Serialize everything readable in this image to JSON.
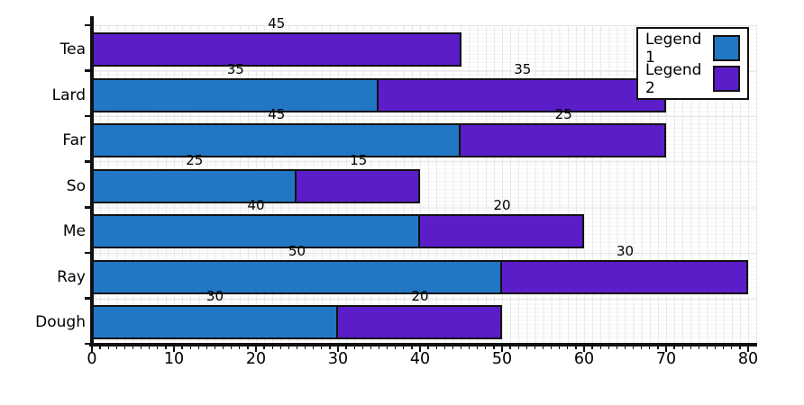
{
  "chart_data": {
    "type": "bar",
    "orientation": "horizontal",
    "stacked": true,
    "title": "",
    "xlabel": "",
    "ylabel": "",
    "categories": [
      "Tea",
      "Lard",
      "Far",
      "So",
      "Me",
      "Ray",
      "Dough"
    ],
    "series": [
      {
        "name": "Legend 1",
        "color": "#2277c4",
        "values": [
          0,
          35,
          45,
          25,
          40,
          50,
          30
        ]
      },
      {
        "name": "Legend 2",
        "color": "#5b1dc8",
        "values": [
          45,
          35,
          25,
          15,
          20,
          30,
          20
        ]
      }
    ],
    "totals": [
      45,
      70,
      70,
      40,
      60,
      80,
      50
    ],
    "xlim": [
      0,
      80
    ],
    "x_ticks": [
      0,
      10,
      20,
      30,
      40,
      50,
      60,
      70,
      80
    ],
    "x_minor_step": 1,
    "bar_labels_visible": true,
    "grid": true,
    "legend_position": "top-right",
    "colors": {
      "bar_border": "#111111",
      "axis": "#111111",
      "label_text": "#000000",
      "legend_background": "#ffffff"
    }
  },
  "legend": {
    "items": [
      {
        "label": "Legend 1"
      },
      {
        "label": "Legend 2"
      }
    ]
  }
}
